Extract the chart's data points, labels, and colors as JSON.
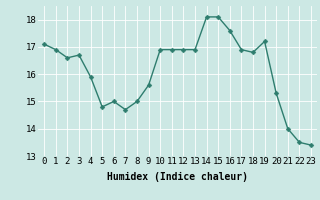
{
  "x": [
    0,
    1,
    2,
    3,
    4,
    5,
    6,
    7,
    8,
    9,
    10,
    11,
    12,
    13,
    14,
    15,
    16,
    17,
    18,
    19,
    20,
    21,
    22,
    23
  ],
  "y": [
    17.1,
    16.9,
    16.6,
    16.7,
    15.9,
    14.8,
    15.0,
    14.7,
    15.0,
    15.6,
    16.9,
    16.9,
    16.9,
    16.9,
    18.1,
    18.1,
    17.6,
    16.9,
    16.8,
    17.2,
    15.3,
    14.0,
    13.5,
    13.4
  ],
  "line_color": "#2e7d6e",
  "marker_color": "#2e7d6e",
  "bg_color": "#cce8e4",
  "grid_color": "#ffffff",
  "xlabel": "Humidex (Indice chaleur)",
  "ylim": [
    13,
    18.5
  ],
  "xlim": [
    -0.5,
    23.5
  ],
  "yticks": [
    13,
    14,
    15,
    16,
    17,
    18
  ],
  "xticks": [
    0,
    1,
    2,
    3,
    4,
    5,
    6,
    7,
    8,
    9,
    10,
    11,
    12,
    13,
    14,
    15,
    16,
    17,
    18,
    19,
    20,
    21,
    22,
    23
  ],
  "xlabel_fontsize": 7,
  "tick_fontsize": 6.5,
  "linewidth": 1.0,
  "markersize": 2.5
}
